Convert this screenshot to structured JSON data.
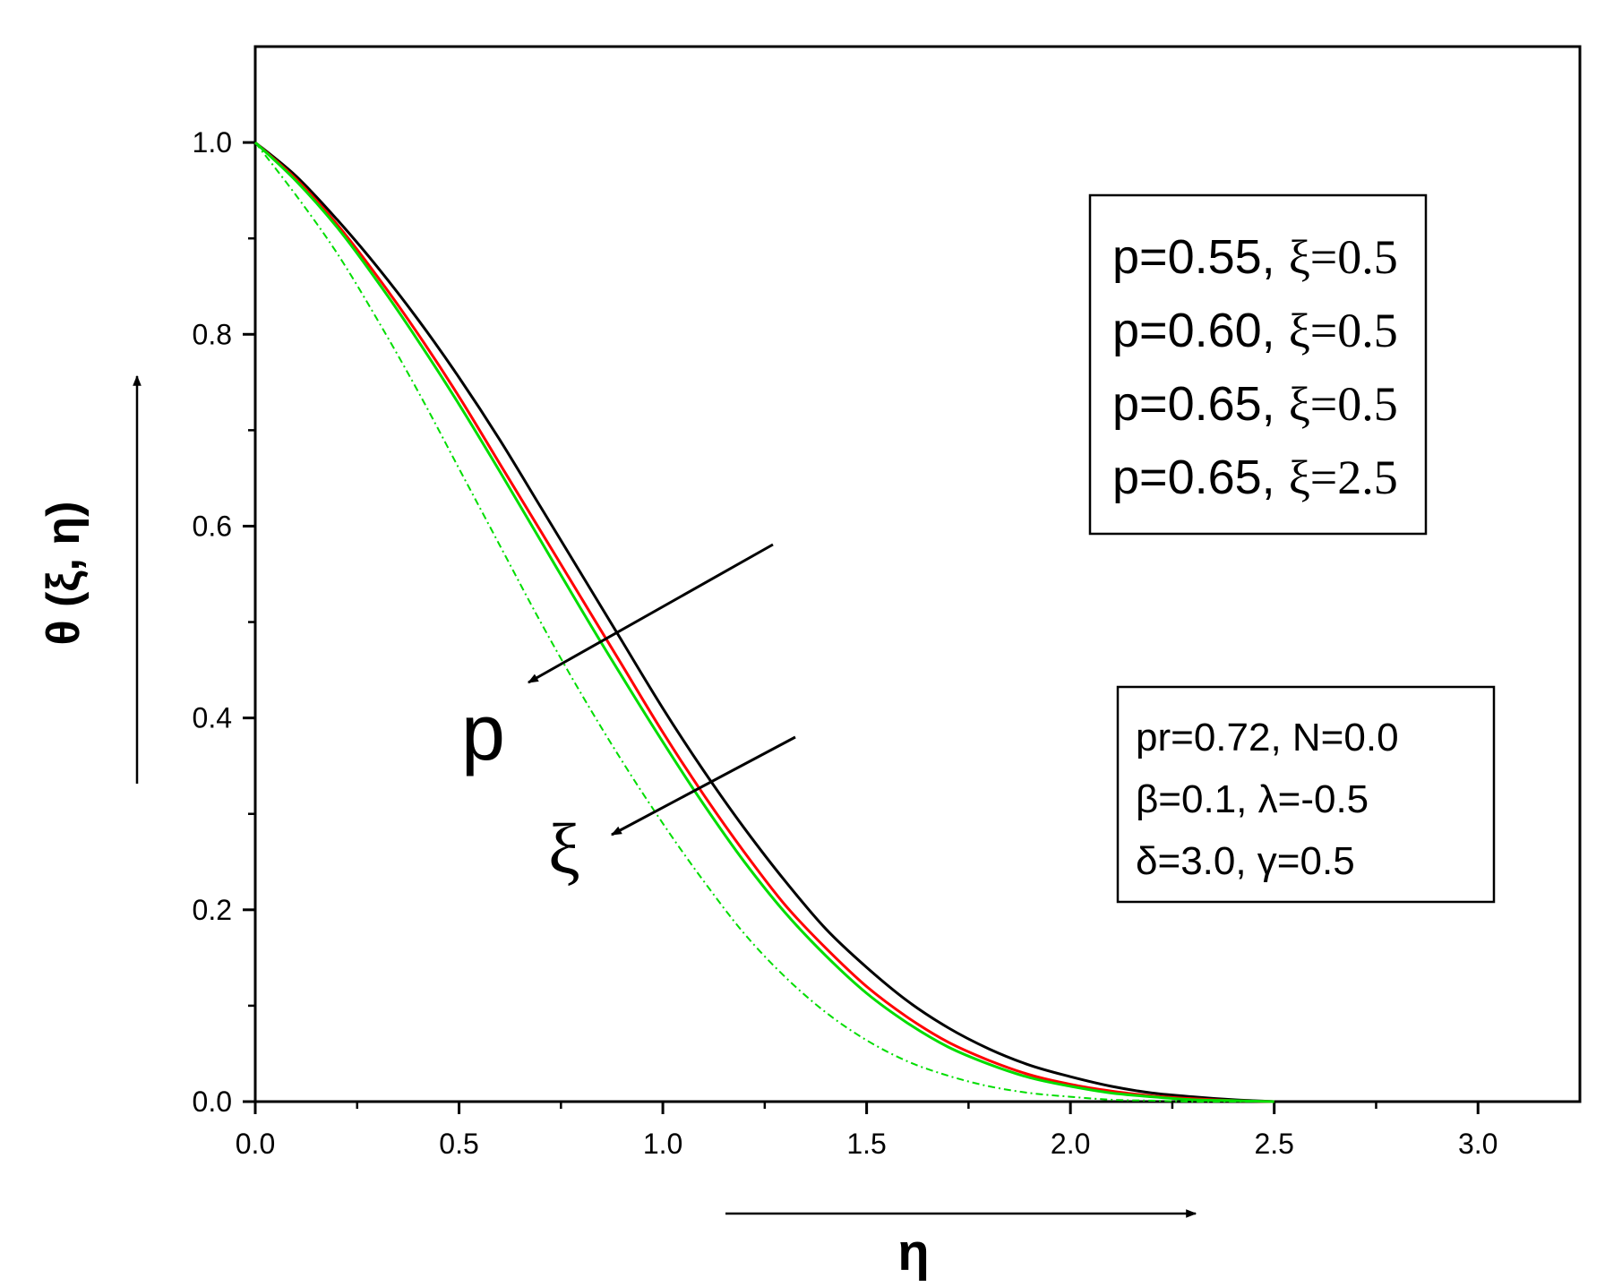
{
  "chart_data": {
    "type": "line",
    "title": "",
    "xlabel": "η",
    "ylabel": "θ (ξ, η)",
    "xlim": [
      0,
      3.25
    ],
    "ylim": [
      0,
      1.1
    ],
    "x_ticks": [
      "0.0",
      "0.5",
      "1.0",
      "1.5",
      "2.0",
      "2.5",
      "3.0"
    ],
    "y_ticks": [
      "0.0",
      "0.2",
      "0.4",
      "0.6",
      "0.8",
      "1.0"
    ],
    "grid": false,
    "legend_position": "top-right",
    "colors": {
      "black": "#000000",
      "red": "#ff0000",
      "green": "#00dd00"
    },
    "x": [
      0.0,
      0.1,
      0.2,
      0.3,
      0.4,
      0.5,
      0.6,
      0.7,
      0.8,
      0.9,
      1.0,
      1.1,
      1.2,
      1.3,
      1.4,
      1.5,
      1.6,
      1.7,
      1.8,
      1.9,
      2.0,
      2.1,
      2.2,
      2.3,
      2.4,
      2.5
    ],
    "series": [
      {
        "name": "p=0.55, ξ=0.5",
        "color": "#000000",
        "dash": "solid",
        "values": [
          1.0,
          0.965,
          0.92,
          0.87,
          0.815,
          0.755,
          0.69,
          0.62,
          0.55,
          0.48,
          0.41,
          0.345,
          0.285,
          0.23,
          0.18,
          0.14,
          0.105,
          0.077,
          0.055,
          0.038,
          0.026,
          0.016,
          0.009,
          0.005,
          0.002,
          0.0
        ]
      },
      {
        "name": "p=0.60, ξ=0.5",
        "color": "#ff0000",
        "dash": "solid",
        "values": [
          1.0,
          0.962,
          0.915,
          0.86,
          0.8,
          0.735,
          0.665,
          0.595,
          0.525,
          0.455,
          0.385,
          0.32,
          0.26,
          0.205,
          0.16,
          0.12,
          0.088,
          0.062,
          0.043,
          0.028,
          0.018,
          0.011,
          0.006,
          0.003,
          0.001,
          0.0
        ]
      },
      {
        "name": "p=0.65, ξ=0.5",
        "color": "#00dd00",
        "dash": "solid",
        "values": [
          1.0,
          0.96,
          0.912,
          0.855,
          0.793,
          0.727,
          0.657,
          0.585,
          0.513,
          0.443,
          0.375,
          0.31,
          0.25,
          0.197,
          0.152,
          0.113,
          0.082,
          0.057,
          0.039,
          0.025,
          0.016,
          0.009,
          0.005,
          0.002,
          0.001,
          0.0
        ]
      },
      {
        "name": "p=0.65, ξ=2.5",
        "color": "#00dd00",
        "dash": "dash-dot",
        "values": [
          1.0,
          0.945,
          0.885,
          0.815,
          0.74,
          0.66,
          0.58,
          0.5,
          0.425,
          0.355,
          0.29,
          0.23,
          0.175,
          0.13,
          0.093,
          0.064,
          0.042,
          0.027,
          0.016,
          0.009,
          0.005,
          0.002,
          0.001,
          0.0,
          0.0,
          0.0
        ]
      }
    ],
    "params_box": [
      "pr=0.72, N=0.0",
      "β=0.1, λ=-0.5",
      "δ=3.0, γ=0.5"
    ],
    "annotations": [
      "p",
      "ξ"
    ]
  }
}
